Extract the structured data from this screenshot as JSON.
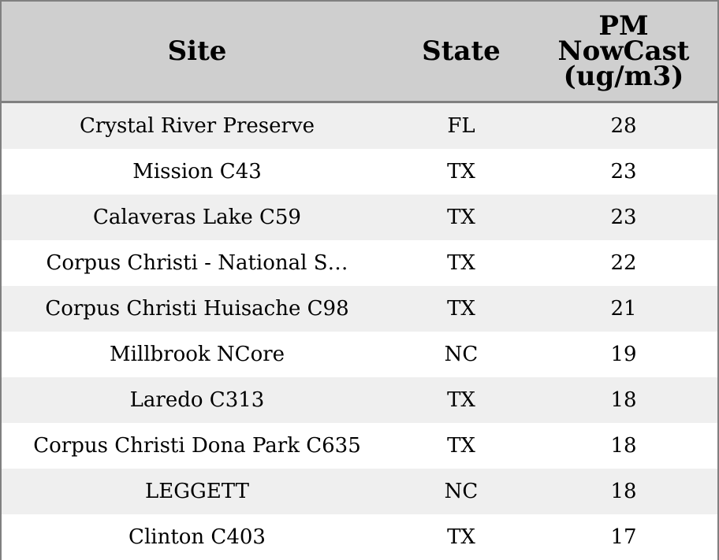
{
  "chart_data": {
    "type": "table",
    "columns": [
      "Site",
      "State",
      "PM NowCast (ug/m3)"
    ],
    "rows": [
      {
        "site": "Crystal River Preserve",
        "state": "FL",
        "value": 28
      },
      {
        "site": "Mission C43",
        "state": "TX",
        "value": 23
      },
      {
        "site": "Calaveras Lake C59",
        "state": "TX",
        "value": 23
      },
      {
        "site": "Corpus Christi - National S…",
        "state": "TX",
        "value": 22
      },
      {
        "site": "Corpus Christi Huisache C98",
        "state": "TX",
        "value": 21
      },
      {
        "site": "Millbrook NCore",
        "state": "NC",
        "value": 19
      },
      {
        "site": "Laredo C313",
        "state": "TX",
        "value": 18
      },
      {
        "site": "Corpus Christi Dona Park C635",
        "state": "TX",
        "value": 18
      },
      {
        "site": "LEGGETT",
        "state": "NC",
        "value": 18
      },
      {
        "site": "Clinton C403",
        "state": "TX",
        "value": 17
      }
    ],
    "header_background": "#cfcfcf",
    "row_stripe_colors": [
      "#efefef",
      "#ffffff"
    ],
    "border_color": "#808080"
  }
}
